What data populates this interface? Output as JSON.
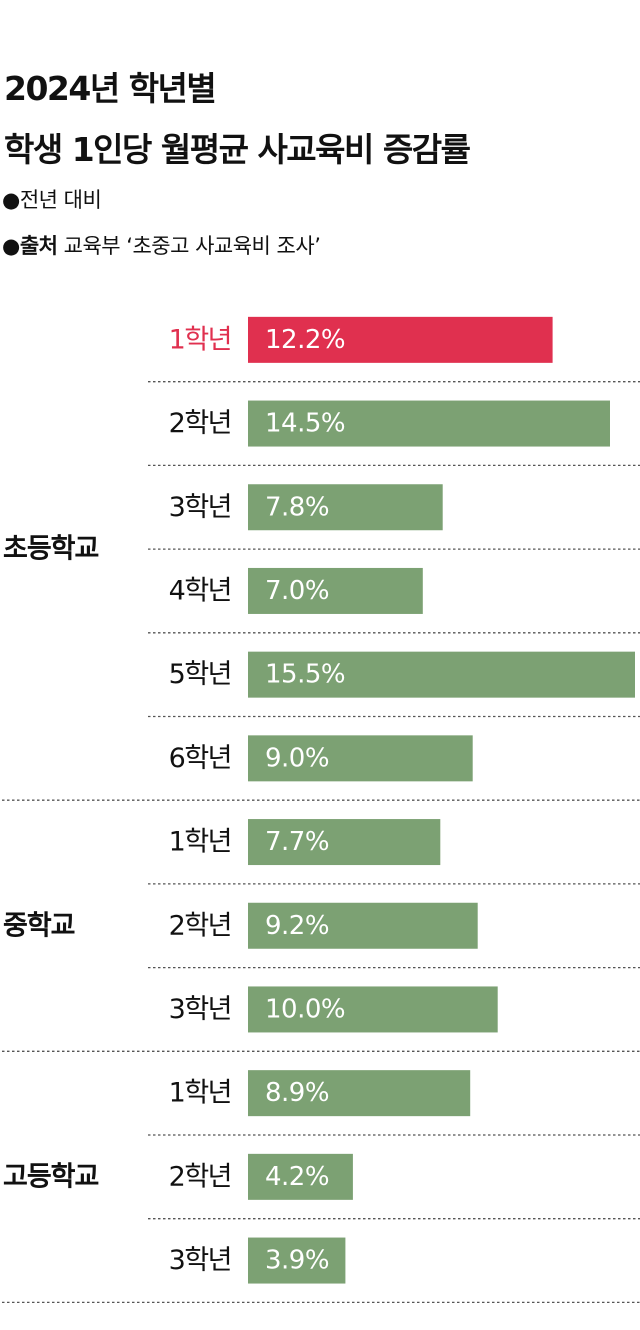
{
  "header": {
    "title_line1": "2024년 학년별",
    "title_line2": "학생 1인당 월평균 사교육비 증감률",
    "bullet": "●",
    "note": "전년 대비",
    "source_label": "출처",
    "source_text": "교육부 ‘초중고 사교육비 조사’"
  },
  "colors": {
    "highlight": "#e0304f",
    "bar": "#7ca173",
    "text": "#111111",
    "divider": "#555555"
  },
  "chart_data": {
    "type": "bar",
    "orientation": "horizontal",
    "unit": "%",
    "xlim": [
      0,
      15.5
    ],
    "groups": [
      {
        "name": "초등학교",
        "bars": [
          {
            "category": "1학년",
            "value": 12.2,
            "label": "12.2%",
            "highlight": true
          },
          {
            "category": "2학년",
            "value": 14.5,
            "label": "14.5%"
          },
          {
            "category": "3학년",
            "value": 7.8,
            "label": "7.8%"
          },
          {
            "category": "4학년",
            "value": 7.0,
            "label": "7.0%"
          },
          {
            "category": "5학년",
            "value": 15.5,
            "label": "15.5%"
          },
          {
            "category": "6학년",
            "value": 9.0,
            "label": "9.0%"
          }
        ]
      },
      {
        "name": "중학교",
        "bars": [
          {
            "category": "1학년",
            "value": 7.7,
            "label": "7.7%"
          },
          {
            "category": "2학년",
            "value": 9.2,
            "label": "9.2%"
          },
          {
            "category": "3학년",
            "value": 10.0,
            "label": "10.0%"
          }
        ]
      },
      {
        "name": "고등학교",
        "bars": [
          {
            "category": "1학년",
            "value": 8.9,
            "label": "8.9%"
          },
          {
            "category": "2학년",
            "value": 4.2,
            "label": "4.2%"
          },
          {
            "category": "3학년",
            "value": 3.9,
            "label": "3.9%"
          }
        ]
      }
    ]
  }
}
